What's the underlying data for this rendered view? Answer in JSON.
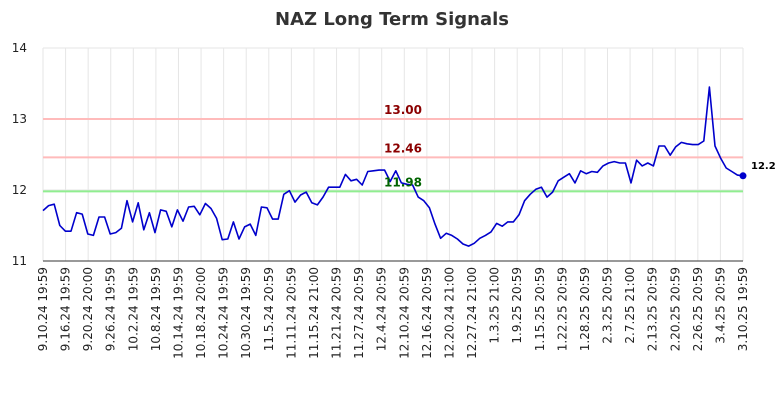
{
  "chart_data": {
    "type": "line",
    "title": "NAZ Long Term Signals",
    "xlabel": "",
    "ylabel": "",
    "ylim": [
      11,
      14
    ],
    "yticks": [
      11,
      12,
      13,
      14
    ],
    "grid": true,
    "x_tick_labels": [
      "9.10.24 19:59",
      "9.16.24 19:59",
      "9.20.24 20:00",
      "9.26.24 19:59",
      "10.2.24 19:59",
      "10.8.24 19:59",
      "10.14.24 19:59",
      "10.18.24 20:00",
      "10.24.24 19:59",
      "10.30.24 19:59",
      "11.5.24 20:59",
      "11.11.24 20:59",
      "11.15.24 21:00",
      "11.21.24 20:59",
      "11.27.24 20:59",
      "12.4.24 20:59",
      "12.10.24 20:59",
      "12.16.24 20:59",
      "12.20.24 21:00",
      "12.27.24 21:00",
      "1.3.25 21:00",
      "1.9.25 20:59",
      "1.15.25 20:59",
      "1.22.25 20:59",
      "1.28.25 20:59",
      "2.3.25 20:59",
      "2.7.25 21:00",
      "2.13.25 20:59",
      "2.20.25 20:59",
      "2.26.25 20:59",
      "3.4.25 20:59",
      "3.10.25 19:59"
    ],
    "reference_lines": [
      {
        "label": "13.00",
        "value": 13.0,
        "line_color": "#ffbbbb",
        "text_color": "#8b0000"
      },
      {
        "label": "12.46",
        "value": 12.46,
        "line_color": "#ffbbbb",
        "text_color": "#8b0000"
      },
      {
        "label": "11.98",
        "value": 11.98,
        "line_color": "#90ee90",
        "text_color": "#006400"
      }
    ],
    "series": [
      {
        "color": "#0000cc",
        "values": [
          11.71,
          11.78,
          11.8,
          11.5,
          11.42,
          11.42,
          11.68,
          11.66,
          11.38,
          11.36,
          11.62,
          11.62,
          11.38,
          11.4,
          11.46,
          11.85,
          11.55,
          11.82,
          11.44,
          11.68,
          11.4,
          11.72,
          11.7,
          11.48,
          11.72,
          11.56,
          11.76,
          11.77,
          11.65,
          11.81,
          11.74,
          11.6,
          11.3,
          11.31,
          11.55,
          11.31,
          11.48,
          11.52,
          11.36,
          11.76,
          11.75,
          11.59,
          11.59,
          11.94,
          11.99,
          11.83,
          11.93,
          11.97,
          11.82,
          11.79,
          11.9,
          12.04,
          12.04,
          12.04,
          12.22,
          12.13,
          12.15,
          12.07,
          12.26,
          12.27,
          12.28,
          12.28,
          12.12,
          12.27,
          12.1,
          12.08,
          12.07,
          11.9,
          11.85,
          11.75,
          11.52,
          11.32,
          11.39,
          11.36,
          11.31,
          11.24,
          11.21,
          11.25,
          11.32,
          11.36,
          11.41,
          11.53,
          11.49,
          11.55,
          11.55,
          11.65,
          11.85,
          11.94,
          12.01,
          12.04,
          11.9,
          11.97,
          12.13,
          12.18,
          12.23,
          12.1,
          12.27,
          12.23,
          12.26,
          12.25,
          12.34,
          12.38,
          12.4,
          12.38,
          12.38,
          12.1,
          12.42,
          12.34,
          12.38,
          12.34,
          12.62,
          12.62,
          12.49,
          12.61,
          12.67,
          12.65,
          12.64,
          12.64,
          12.69,
          13.45,
          12.62,
          12.45,
          12.31,
          12.26,
          12.21,
          12.2
        ]
      }
    ],
    "last_value_label": "12.2"
  }
}
